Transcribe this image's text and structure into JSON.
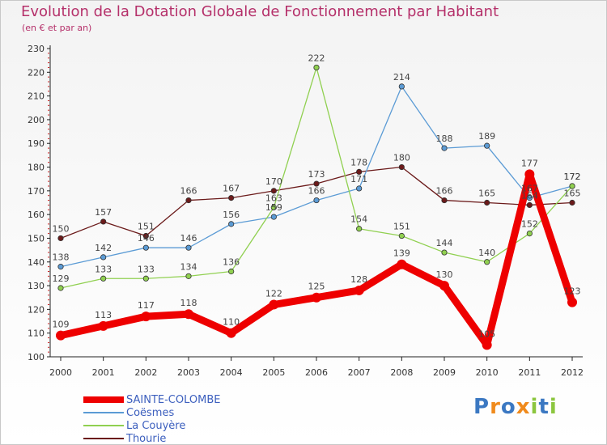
{
  "chart_data": {
    "type": "line",
    "title": "Evolution de la Dotation Globale de Fonctionnement par Habitant",
    "subtitle": "(en € et par an)",
    "xlabel": "",
    "ylabel": "",
    "ylim": [
      100,
      230
    ],
    "yticks": [
      100,
      110,
      120,
      130,
      140,
      150,
      160,
      170,
      180,
      190,
      200,
      210,
      220,
      230
    ],
    "categories": [
      "2000",
      "2001",
      "2002",
      "2003",
      "2004",
      "2005",
      "2006",
      "2007",
      "2008",
      "2009",
      "2010",
      "2011",
      "2012"
    ],
    "series": [
      {
        "name": "SAINTE-COLOMBE",
        "color": "#ee0000",
        "values": [
          109,
          113,
          117,
          118,
          110,
          122,
          125,
          128,
          139,
          130,
          105,
          177,
          123
        ]
      },
      {
        "name": "Coësmes",
        "color": "#5b9bd5",
        "values": [
          138,
          142,
          146,
          146,
          156,
          159,
          166,
          171,
          214,
          188,
          189,
          167,
          172
        ]
      },
      {
        "name": "La Couyère",
        "color": "#90d050",
        "values": [
          129,
          133,
          133,
          134,
          136,
          163,
          222,
          154,
          151,
          144,
          140,
          152,
          172
        ]
      },
      {
        "name": "Thourie",
        "color": "#6b1a1a",
        "values": [
          150,
          157,
          151,
          166,
          167,
          170,
          173,
          178,
          180,
          166,
          165,
          164,
          165
        ]
      }
    ],
    "data_labels": {
      "SAINTE-COLOMBE": [
        "109",
        "113",
        "117",
        "118",
        "110",
        "122",
        "125",
        "128",
        "139",
        "130",
        "105",
        "177",
        "123"
      ],
      "Coësmes": [
        "138",
        "142",
        "146",
        "146",
        "156",
        "159",
        "166",
        "171",
        "214",
        "188",
        "189",
        "167",
        "172"
      ],
      "La Couyère": [
        "129",
        "133",
        "133",
        "134",
        "136",
        "163",
        "222",
        "154",
        "151",
        "144",
        "140",
        "152",
        "172"
      ],
      "Thourie": [
        "150",
        "157",
        "151",
        "166",
        "167",
        "170",
        "173",
        "178",
        "180",
        "166",
        "165",
        "164",
        "165"
      ]
    },
    "grid": false,
    "legend_position": "bottom-left"
  },
  "brand": {
    "text": "Proxiti",
    "letter_colors": [
      "#3b78c2",
      "#f08a1c",
      "#3b78c2",
      "#f08a1c",
      "#8cc63f",
      "#3b78c2",
      "#8cc63f"
    ]
  }
}
